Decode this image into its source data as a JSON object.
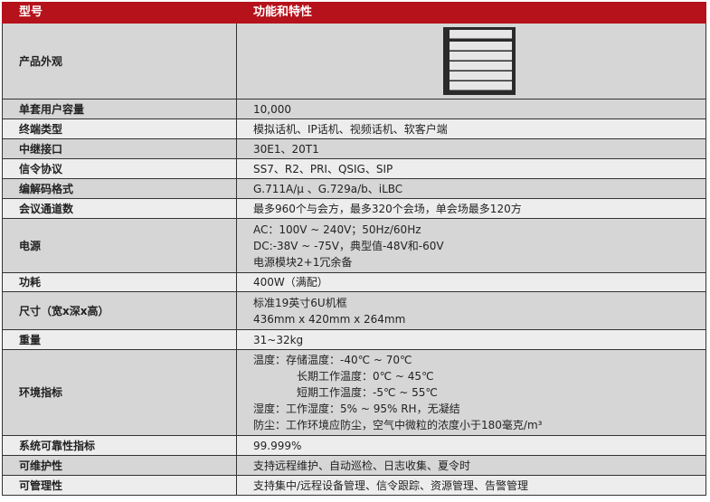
{
  "header": {
    "col1": "型号",
    "col2": "功能和特性"
  },
  "rows": [
    {
      "label": "产品外观",
      "lines": []
    },
    {
      "label": "单套用户容量",
      "lines": [
        "10,000"
      ]
    },
    {
      "label": "终端类型",
      "lines": [
        "模拟话机、IP话机、视频话机、软客户端"
      ]
    },
    {
      "label": "中继接口",
      "lines": [
        "30E1、20T1"
      ]
    },
    {
      "label": "信令协议",
      "lines": [
        "SS7、R2、PRI、QSIG、SIP"
      ]
    },
    {
      "label": "编解码格式",
      "lines": [
        "G.711A/μ 、G.729a/b、iLBC"
      ]
    },
    {
      "label": "会议通道数",
      "lines": [
        "最多960个与会方，最多320个会场，单会场最多120方"
      ]
    },
    {
      "label": "电源",
      "lines": [
        "AC：100V ~ 240V；50Hz/60Hz",
        "DC:-38V ~ -75V，典型值-48V和-60V",
        "电源模块2+1冗余备"
      ]
    },
    {
      "label": "功耗",
      "lines": [
        "400W（满配）"
      ]
    },
    {
      "label": "尺寸（宽x深x高）",
      "lines": [
        "标准19英寸6U机框",
        "436mm x 420mm x 264mm"
      ]
    },
    {
      "label": "重量",
      "lines": [
        "31~32kg"
      ]
    },
    {
      "label": "环境指标",
      "lines": [
        "温度：存储温度：-40℃ ~ 70℃",
        "长期工作温度：0℃ ~ 45℃",
        "短期工作温度：-5℃ ~ 55℃",
        "湿度：工作湿度：5% ~ 95% RH，无凝结",
        "防尘：工作环境应防尘，空气中微粒的浓度小于180毫克/m³"
      ]
    },
    {
      "label": "系统可靠性指标",
      "lines": [
        "99.999%"
      ]
    },
    {
      "label": "可维护性",
      "lines": [
        "支持远程维护、自动巡检、日志收集、夏令时"
      ]
    },
    {
      "label": "可管理性",
      "lines": [
        "支持集中/远程设备管理、信令跟踪、资源管理、告警管理"
      ]
    }
  ],
  "colors": {
    "header": "#b5121b",
    "row_dark": "#d6d6d6",
    "row_light": "#ededed"
  }
}
